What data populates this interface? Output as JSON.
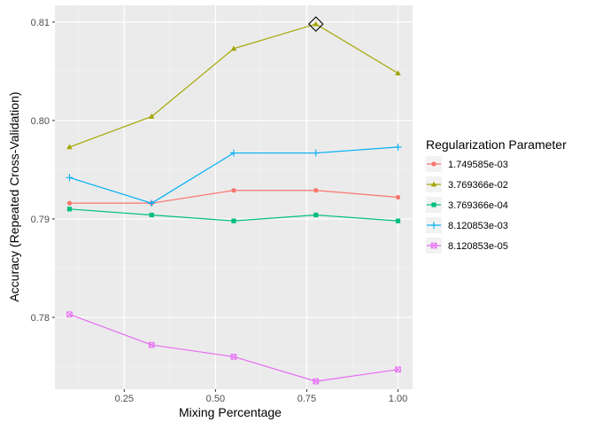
{
  "chart_data": {
    "type": "line",
    "title": "",
    "xlabel": "Mixing Percentage",
    "ylabel": "Accuracy (Repeated Cross-Validation)",
    "xlim": [
      0.06,
      1.04
    ],
    "ylim": [
      0.7727,
      0.8117
    ],
    "x_ticks": [
      0.25,
      0.5,
      0.75,
      1.0
    ],
    "x_tick_labels": [
      "0.25",
      "0.50",
      "0.75",
      "1.00"
    ],
    "y_ticks": [
      0.78,
      0.79,
      0.8,
      0.81
    ],
    "y_tick_labels": [
      "0.78",
      "0.79",
      "0.80",
      "0.81"
    ],
    "x": [
      0.1,
      0.325,
      0.55,
      0.775,
      1.0
    ],
    "grid": true,
    "legend": {
      "title": "Regularization Parameter",
      "position": "right"
    },
    "series": [
      {
        "name": "1.749585e-03",
        "color": "#F8766D",
        "marker": "circle",
        "values": [
          0.7916,
          0.7916,
          0.7929,
          0.7929,
          0.7922
        ]
      },
      {
        "name": "3.769366e-02",
        "color": "#A3A500",
        "marker": "triangle",
        "values": [
          0.7973,
          0.8004,
          0.8073,
          0.8098,
          0.8048
        ]
      },
      {
        "name": "3.769366e-04",
        "color": "#00BF7D",
        "marker": "square",
        "values": [
          0.791,
          0.7904,
          0.7898,
          0.7904,
          0.7898
        ]
      },
      {
        "name": "8.120853e-03",
        "color": "#00B0F6",
        "marker": "plus",
        "values": [
          0.7942,
          0.7916,
          0.7967,
          0.7967,
          0.7973
        ]
      },
      {
        "name": "8.120853e-05",
        "color": "#E76BF3",
        "marker": "boxed-x",
        "values": [
          0.7803,
          0.7772,
          0.776,
          0.7735,
          0.7747
        ]
      }
    ],
    "highlight": {
      "x": 0.775,
      "y": 0.8098,
      "marker": "diamond",
      "series": "3.769366e-02"
    }
  }
}
